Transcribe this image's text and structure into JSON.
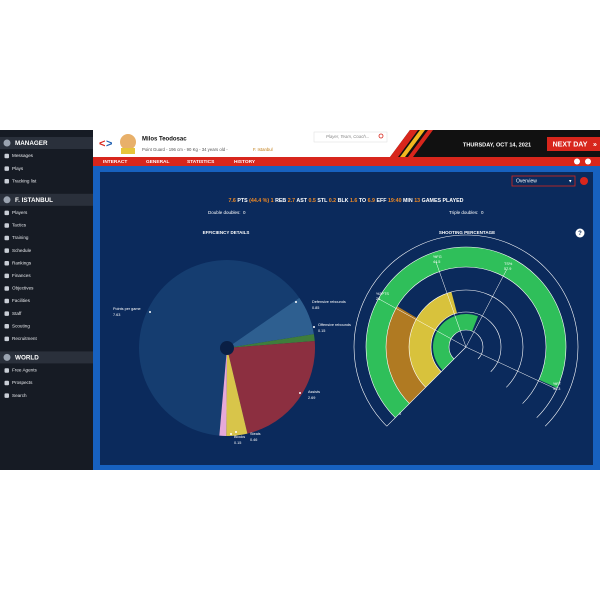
{
  "sidebar": {
    "sections": [
      {
        "title": "MANAGER",
        "items": [
          "Messages",
          "Plays",
          "Tracking list"
        ]
      },
      {
        "title": "F. ISTANBUL",
        "items": [
          "Players",
          "Tactics",
          "Training",
          "Schedule",
          "Rankings",
          "Finances",
          "Objectives",
          "Facilities",
          "Staff",
          "Scouting",
          "Recruitment"
        ]
      },
      {
        "title": "WORLD",
        "items": [
          "Free Agents",
          "Prospects",
          "Search"
        ]
      }
    ]
  },
  "header": {
    "player_name": "Milos Teodosac",
    "player_info": "Point Guard - 196 cm - 90 Kg - 34 years old -",
    "team": "F. Istanbul",
    "search_placeholder": "Player, Team, Coach...",
    "date": "THURSDAY, OCT 14, 2021",
    "next_day": "NEXT DAY"
  },
  "menu": [
    "INTERACT",
    "GENERAL",
    "STATISTICS",
    "HISTORY"
  ],
  "view_select": "Overview",
  "summary": [
    {
      "value": "7.6",
      "label": "PTS"
    },
    {
      "value": "(44.4 %)"
    },
    {
      "value": "1",
      "label": "REB"
    },
    {
      "value": "2.7",
      "label": "AST"
    },
    {
      "value": "0.5",
      "label": "STL"
    },
    {
      "value": "0.2",
      "label": "BLK"
    },
    {
      "value": "1.6",
      "label": "TO"
    },
    {
      "value": "6.9",
      "label": "EFF"
    },
    {
      "value": "19:40",
      "label": "MIN"
    },
    {
      "value": "13",
      "label": "GAMES PLAYED"
    }
  ],
  "double_doubles": {
    "label": "Double doubles:",
    "value": 0
  },
  "triple_doubles": {
    "label": "Triple doubles:",
    "value": 0
  },
  "chart_data": [
    {
      "type": "pie",
      "title": "EFFICIENCY DETAILS",
      "categories": [
        "Points per game",
        "Defensive rebounds",
        "Offensive rebounds",
        "Assists",
        "Steals",
        "Blocks"
      ],
      "values": [
        7.63,
        0.85,
        0.15,
        2.69,
        0.46,
        0.15
      ],
      "colors": [
        "#153d70",
        "#2e5f90",
        "#3f7d3b",
        "#8c2f40",
        "#d8c54a",
        "#e6a9d9"
      ]
    },
    {
      "type": "radial_bar",
      "title": "SHOOTING PERCENTAGE",
      "categories": [
        "%FT",
        "%3PTS",
        "%FG",
        "TS%"
      ],
      "values": [
        92.3,
        28,
        44.5,
        57.9
      ],
      "colors": [
        "#2fbf5a",
        "#b07a22",
        "#d8c23c",
        "#2fbf5a"
      ],
      "rlim": [
        0,
        100
      ]
    }
  ]
}
